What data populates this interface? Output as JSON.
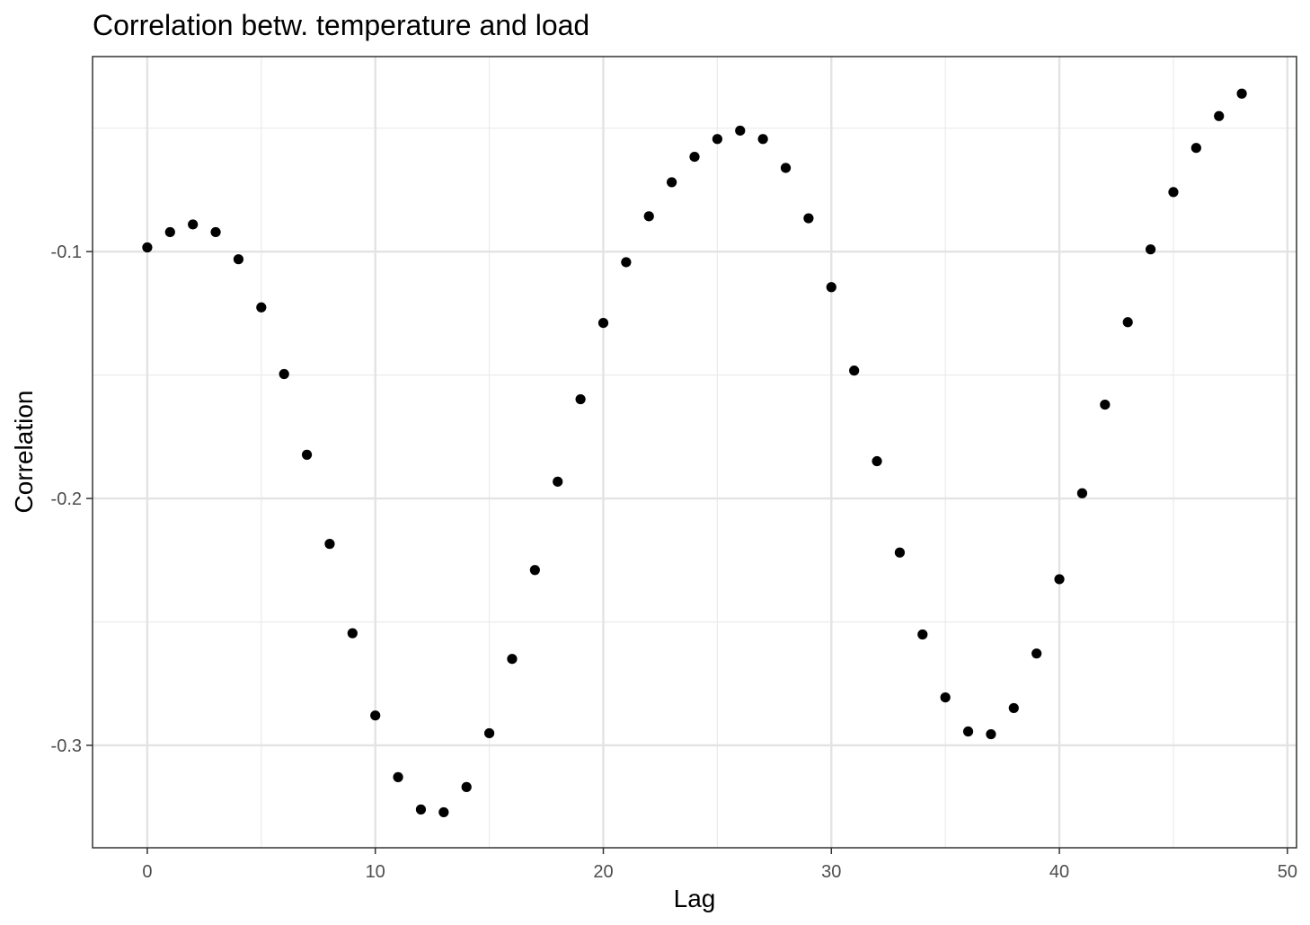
{
  "chart_data": {
    "type": "scatter",
    "title": "Correlation betw. temperature and load",
    "xlabel": "Lag",
    "ylabel": "Correlation",
    "xlim": [
      -2.4,
      50.4
    ],
    "ylim": [
      -0.3415,
      -0.021
    ],
    "x_ticks": [
      0,
      10,
      20,
      30,
      40,
      50
    ],
    "x_tick_labels": [
      "0",
      "10",
      "20",
      "30",
      "40",
      "50"
    ],
    "y_ticks": [
      -0.1,
      -0.2,
      -0.3
    ],
    "y_tick_labels": [
      "-0.1",
      "-0.2",
      "-0.3"
    ],
    "x_minor_ticks": [
      5,
      15,
      25,
      35,
      45
    ],
    "y_minor_ticks": [
      -0.05,
      -0.15,
      -0.25
    ],
    "grid": true,
    "legend": "none",
    "point_color": "#000000",
    "x": [
      0,
      1,
      2,
      3,
      4,
      5,
      6,
      7,
      8,
      9,
      10,
      11,
      12,
      13,
      14,
      15,
      16,
      17,
      18,
      19,
      20,
      21,
      22,
      23,
      24,
      25,
      26,
      27,
      28,
      29,
      30,
      31,
      32,
      33,
      34,
      35,
      36,
      37,
      38,
      39,
      40,
      41,
      42,
      43,
      44,
      45,
      46,
      47,
      48
    ],
    "y": [
      -0.0983,
      -0.0921,
      -0.089,
      -0.0921,
      -0.1031,
      -0.1226,
      -0.1496,
      -0.1823,
      -0.2184,
      -0.2546,
      -0.2879,
      -0.3129,
      -0.326,
      -0.3271,
      -0.3169,
      -0.2951,
      -0.265,
      -0.229,
      -0.1932,
      -0.1598,
      -0.1289,
      -0.1043,
      -0.0857,
      -0.0719,
      -0.0616,
      -0.0544,
      -0.051,
      -0.0544,
      -0.0661,
      -0.0865,
      -0.1144,
      -0.1482,
      -0.1849,
      -0.2219,
      -0.2551,
      -0.2806,
      -0.2944,
      -0.2955,
      -0.2849,
      -0.2628,
      -0.2327,
      -0.1979,
      -0.162,
      -0.1286,
      -0.0991,
      -0.0759,
      -0.058,
      -0.0451,
      -0.036
    ]
  }
}
